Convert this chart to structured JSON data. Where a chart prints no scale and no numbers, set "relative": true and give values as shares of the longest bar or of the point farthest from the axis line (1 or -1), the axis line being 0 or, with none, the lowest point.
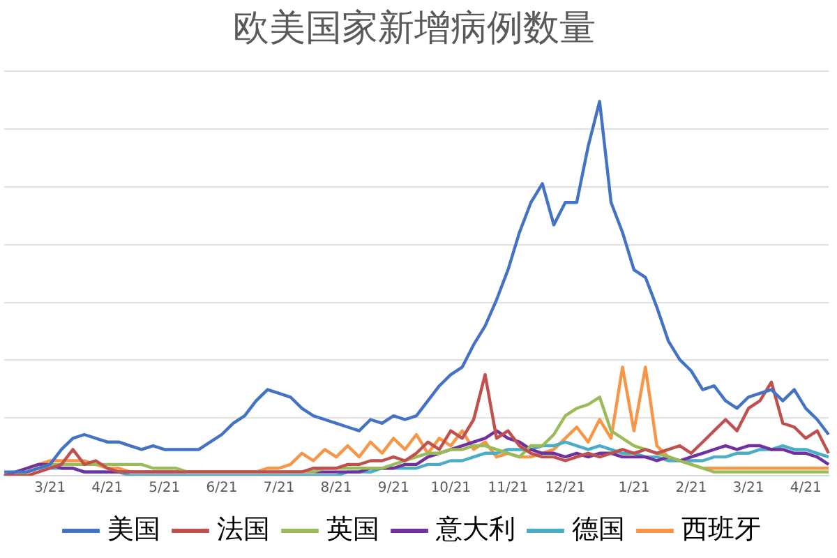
{
  "chart_data": {
    "type": "line",
    "title": "欧美国家新增病例数量",
    "relative": true,
    "grid": "y",
    "legend": "bottom",
    "marker": "none",
    "line_style": "solid",
    "categories": [
      null,
      null,
      null,
      null,
      "3/21",
      null,
      null,
      null,
      null,
      "4/21",
      null,
      null,
      null,
      null,
      "5/21",
      null,
      null,
      null,
      null,
      "6/21",
      null,
      null,
      null,
      null,
      "7/21",
      null,
      null,
      null,
      null,
      "8/21",
      null,
      null,
      null,
      null,
      "9/21",
      null,
      null,
      null,
      null,
      "10/21",
      null,
      null,
      null,
      null,
      "11/21",
      null,
      null,
      null,
      null,
      "12/21",
      null,
      null,
      null,
      null,
      null,
      "1/21",
      null,
      null,
      null,
      null,
      "2/21",
      null,
      null,
      null,
      null,
      "3/21",
      null,
      null,
      null,
      null,
      "4/21",
      null,
      null
    ],
    "series": [
      {
        "name": "美国",
        "color": "#4472c4",
        "values": [
          0.01,
          0.01,
          0.01,
          0.02,
          0.03,
          0.07,
          0.1,
          0.11,
          0.1,
          0.09,
          0.09,
          0.08,
          0.07,
          0.08,
          0.07,
          0.07,
          0.07,
          0.07,
          0.09,
          0.11,
          0.14,
          0.16,
          0.2,
          0.23,
          0.22,
          0.21,
          0.18,
          0.16,
          0.15,
          0.14,
          0.13,
          0.12,
          0.15,
          0.14,
          0.16,
          0.15,
          0.16,
          0.2,
          0.24,
          0.27,
          0.29,
          0.35,
          0.4,
          0.47,
          0.55,
          0.65,
          0.73,
          0.78,
          0.67,
          0.73,
          0.73,
          0.88,
          1,
          0.73,
          0.65,
          0.55,
          0.53,
          0.45,
          0.36,
          0.31,
          0.28,
          0.23,
          0.24,
          0.2,
          0.18,
          0.21,
          0.22,
          0.23,
          0.2,
          0.23,
          0.18,
          0.15,
          0.11
        ]
      },
      {
        "name": "法国",
        "color": "#c0504d",
        "values": [
          0,
          0,
          0,
          0.01,
          0.02,
          0.03,
          0.07,
          0.03,
          0.04,
          0.02,
          0.01,
          0.01,
          0.01,
          0.01,
          0.01,
          0.01,
          0.01,
          0.01,
          0.01,
          0.01,
          0.01,
          0.01,
          0.01,
          0.01,
          0.01,
          0.01,
          0.01,
          0.02,
          0.02,
          0.02,
          0.03,
          0.03,
          0.04,
          0.04,
          0.05,
          0.04,
          0.06,
          0.09,
          0.07,
          0.12,
          0.1,
          0.15,
          0.27,
          0.1,
          0.12,
          0.08,
          0.06,
          0.05,
          0.05,
          0.04,
          0.05,
          0.06,
          0.05,
          0.06,
          0.07,
          0.06,
          0.07,
          0.06,
          0.07,
          0.08,
          0.06,
          0.09,
          0.12,
          0.15,
          0.12,
          0.18,
          0.2,
          0.25,
          0.14,
          0.13,
          0.1,
          0.12,
          0.06
        ]
      },
      {
        "name": "英国",
        "color": "#9bbb59",
        "values": [
          0,
          0,
          0.01,
          0.02,
          0.03,
          0.03,
          0.03,
          0.03,
          0.03,
          0.03,
          0.03,
          0.03,
          0.03,
          0.02,
          0.02,
          0.02,
          0.01,
          0.01,
          0.01,
          0.01,
          0.01,
          0.01,
          0.01,
          0.01,
          0.01,
          0.01,
          0.01,
          0.01,
          0.02,
          0.02,
          0.02,
          0.02,
          0.02,
          0.02,
          0.03,
          0.04,
          0.05,
          0.06,
          0.06,
          0.07,
          0.07,
          0.08,
          0.08,
          0.07,
          0.06,
          0.05,
          0.08,
          0.08,
          0.11,
          0.16,
          0.18,
          0.19,
          0.21,
          0.12,
          0.1,
          0.08,
          0.07,
          0.06,
          0.05,
          0.04,
          0.03,
          0.02,
          0.01,
          0.01,
          0.01,
          0.01,
          0.01,
          0.01,
          0.01,
          0.01,
          0.01,
          0.01,
          0.01
        ]
      },
      {
        "name": "意大利",
        "color": "#7030a0",
        "values": [
          0,
          0.01,
          0.02,
          0.03,
          0.03,
          0.02,
          0.02,
          0.01,
          0.01,
          0.01,
          0.01,
          0.01,
          0.01,
          0.01,
          0.01,
          0.01,
          0.01,
          0.01,
          0.01,
          0.01,
          0.01,
          0.01,
          0.01,
          0.01,
          0.01,
          0.01,
          0.01,
          0.01,
          0.01,
          0.01,
          0.01,
          0.01,
          0.02,
          0.02,
          0.02,
          0.03,
          0.03,
          0.05,
          0.06,
          0.07,
          0.08,
          0.09,
          0.1,
          0.12,
          0.1,
          0.09,
          0.07,
          0.06,
          0.06,
          0.05,
          0.06,
          0.05,
          0.06,
          0.06,
          0.05,
          0.05,
          0.05,
          0.04,
          0.05,
          0.04,
          0.05,
          0.06,
          0.07,
          0.08,
          0.07,
          0.08,
          0.08,
          0.07,
          0.07,
          0.06,
          0.06,
          0.05,
          0.03
        ]
      },
      {
        "name": "德国",
        "color": "#4bacc6",
        "values": [
          0,
          0,
          0.01,
          0.02,
          0.02,
          0.02,
          0.02,
          0.01,
          0.01,
          0.01,
          0.01,
          0,
          0,
          0,
          0,
          0,
          0,
          0,
          0,
          0,
          0,
          0,
          0,
          0,
          0,
          0,
          0,
          0,
          0,
          0,
          0.01,
          0.01,
          0.01,
          0.02,
          0.02,
          0.02,
          0.02,
          0.03,
          0.03,
          0.04,
          0.04,
          0.05,
          0.06,
          0.06,
          0.07,
          0.07,
          0.07,
          0.08,
          0.08,
          0.09,
          0.08,
          0.07,
          0.08,
          0.07,
          0.06,
          0.06,
          0.05,
          0.05,
          0.04,
          0.04,
          0.04,
          0.04,
          0.05,
          0.05,
          0.06,
          0.06,
          0.07,
          0.07,
          0.08,
          0.07,
          0.07,
          0.06,
          0.05
        ]
      },
      {
        "name": "西班牙",
        "color": "#f79646",
        "values": [
          null,
          null,
          0.02,
          0.03,
          0.04,
          0.04,
          0.04,
          0.04,
          0.03,
          0.02,
          0.02,
          0.01,
          0.01,
          0.01,
          0.01,
          0.01,
          0.01,
          0.01,
          0.01,
          0.01,
          0.01,
          0.01,
          0.01,
          0.02,
          0.02,
          0.03,
          0.06,
          0.04,
          0.07,
          0.05,
          0.08,
          0.05,
          0.09,
          0.06,
          0.1,
          0.07,
          0.11,
          0.06,
          0.1,
          0.08,
          0.12,
          0.07,
          0.09,
          0.05,
          0.06,
          0.05,
          0.05,
          0.06,
          0.07,
          0.1,
          0.13,
          0.09,
          0.15,
          0.1,
          0.29,
          0.12,
          0.29,
          0.08,
          0.05,
          0.04,
          0.03,
          0.02,
          0.02,
          0.02,
          0.02,
          0.02,
          0.02,
          0.02,
          0.02,
          0.02,
          0.02,
          0.02,
          0.02
        ]
      }
    ]
  }
}
